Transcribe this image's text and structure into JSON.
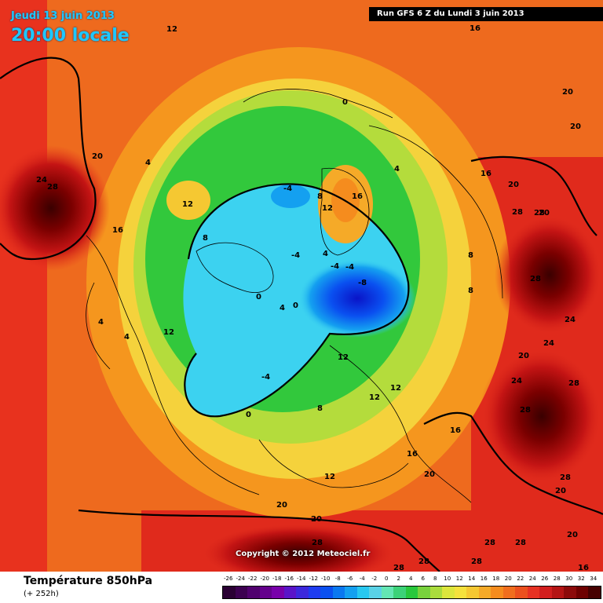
{
  "header": {
    "date_label": "Jeudi 13 juin 2013",
    "time_label": "20:00 locale",
    "run_label": "Run GFS 6 Z du Lundi 3 juin 2013"
  },
  "map": {
    "projection": "polar-stereographic-north",
    "copyright": "Copyright © 2012 Meteociel.fr",
    "colors": {
      "warm_dark": "#5c0000",
      "warm": "#e8321e",
      "orange": "#f5821e",
      "yellow": "#f5e13c",
      "green": "#28c83c",
      "cyan": "#3cd2f0",
      "blue": "#0a50f0",
      "dark_blue": "#0a14c8"
    },
    "contour_labels": [
      {
        "text": "12"
      },
      {
        "text": "16"
      },
      {
        "text": "20"
      },
      {
        "text": "24"
      },
      {
        "text": "28"
      },
      {
        "text": "16"
      },
      {
        "text": "20"
      },
      {
        "text": "12"
      },
      {
        "text": "4"
      },
      {
        "text": "0"
      },
      {
        "text": "4"
      },
      {
        "text": "-4"
      },
      {
        "text": "16"
      },
      {
        "text": "12"
      },
      {
        "text": "8"
      },
      {
        "text": "4"
      },
      {
        "text": "-4"
      },
      {
        "text": "-4"
      },
      {
        "text": "-4"
      },
      {
        "text": "-8"
      },
      {
        "text": "0"
      },
      {
        "text": "0"
      },
      {
        "text": "4"
      },
      {
        "text": "12"
      },
      {
        "text": "4"
      },
      {
        "text": "4"
      },
      {
        "text": "8"
      },
      {
        "text": "12"
      },
      {
        "text": "-4"
      },
      {
        "text": "0"
      },
      {
        "text": "12"
      },
      {
        "text": "12"
      },
      {
        "text": "8"
      },
      {
        "text": "16"
      },
      {
        "text": "20"
      },
      {
        "text": "12"
      },
      {
        "text": "16"
      },
      {
        "text": "20"
      },
      {
        "text": "20"
      },
      {
        "text": "28"
      },
      {
        "text": "28"
      },
      {
        "text": "28"
      },
      {
        "text": "16"
      },
      {
        "text": "20"
      },
      {
        "text": "20"
      },
      {
        "text": "20"
      },
      {
        "text": "20"
      },
      {
        "text": "28"
      },
      {
        "text": "28"
      },
      {
        "text": "24"
      },
      {
        "text": "24"
      },
      {
        "text": "28"
      },
      {
        "text": "24"
      },
      {
        "text": "28"
      },
      {
        "text": "20"
      },
      {
        "text": "28"
      },
      {
        "text": "28"
      },
      {
        "text": "28"
      },
      {
        "text": "28"
      },
      {
        "text": "28"
      },
      {
        "text": "20"
      },
      {
        "text": "16"
      },
      {
        "text": "8"
      },
      {
        "text": "8"
      }
    ]
  },
  "legend": {
    "parameter_title": "Température 850hPa",
    "forecast_hour": "(+ 252h)",
    "scale_values": [
      "-26",
      "-24",
      "-22",
      "-20",
      "-18",
      "-16",
      "-14",
      "-12",
      "-10",
      "-8",
      "-6",
      "-4",
      "-2",
      "0",
      "2",
      "4",
      "6",
      "8",
      "10",
      "12",
      "14",
      "16",
      "18",
      "20",
      "22",
      "24",
      "26",
      "28",
      "30",
      "32",
      "34"
    ],
    "scale_colors": [
      "#2a0033",
      "#3c0050",
      "#50006e",
      "#64008c",
      "#7800aa",
      "#5a14c8",
      "#3c28dc",
      "#1e3cf0",
      "#0a50f0",
      "#0a78f0",
      "#14a0f0",
      "#28c8f0",
      "#5ad2e6",
      "#64e6b4",
      "#3cd278",
      "#28c83c",
      "#78d23c",
      "#aadc3c",
      "#dce63c",
      "#f5e13c",
      "#f5c832",
      "#f5aa28",
      "#f58c1e",
      "#f06e1e",
      "#eb501e",
      "#e63223",
      "#d21e1e",
      "#b41414",
      "#8c0a0a",
      "#6e0000",
      "#460000"
    ]
  }
}
